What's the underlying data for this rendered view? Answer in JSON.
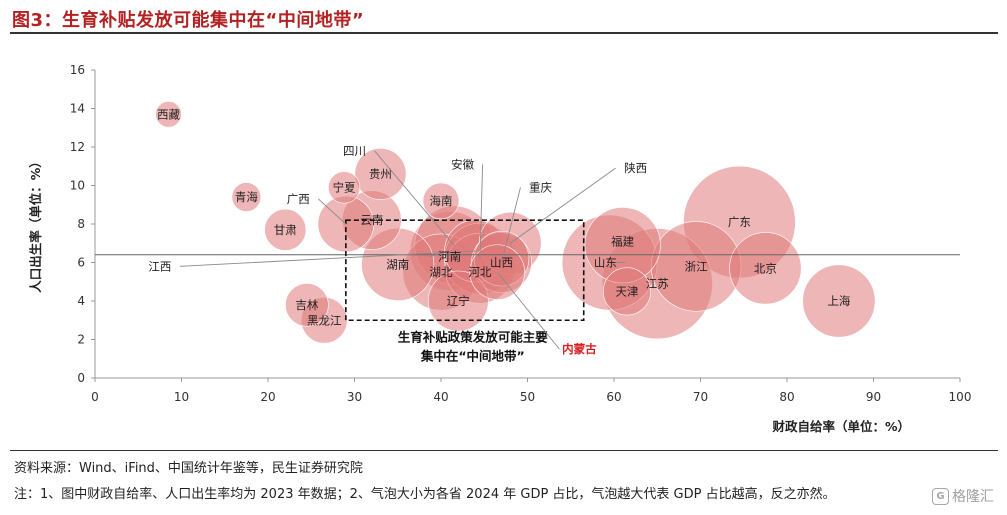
{
  "figure": {
    "title": "图3：生育补贴发放可能集中在“中间地带”",
    "source": "资料来源：Wind、iFind、中国统计年鉴等，民生证券研究院",
    "note": "注：1、图中财政自给率、人口出生率均为 2023 年数据；2、气泡大小为各省 2024 年 GDP 占比，气泡越大代表 GDP 占比越高，反之亦然。",
    "watermark": "格隆汇",
    "watermark_icon": "G"
  },
  "chart_data": {
    "type": "scatter",
    "subtype": "bubble",
    "xlabel": "财政自给率（单位：%）",
    "ylabel": "人口出生率（单位：%）",
    "xlim": [
      0,
      100
    ],
    "ylim": [
      0,
      16
    ],
    "xticks": [
      0,
      10,
      20,
      30,
      40,
      50,
      60,
      70,
      80,
      90,
      100
    ],
    "yticks": [
      0,
      2,
      4,
      6,
      8,
      10,
      12,
      14,
      16
    ],
    "grid": false,
    "bubble_color": "#e07a7a",
    "highlight_color": "#d42020",
    "reference_line_y": 6.4,
    "highlight_box": {
      "x": [
        29,
        56.5
      ],
      "y": [
        3,
        8.2
      ]
    },
    "box_label": [
      "生育补贴政策发放可能主要",
      "集中在“中间地带”"
    ],
    "points": [
      {
        "name": "西藏",
        "x": 8.5,
        "y": 13.7,
        "gdp_share": 0.2,
        "label_x": 8.5,
        "label_y": 13.7
      },
      {
        "name": "青海",
        "x": 17.5,
        "y": 9.4,
        "gdp_share": 0.3,
        "label_x": 17.5,
        "label_y": 9.4
      },
      {
        "name": "宁夏",
        "x": 28.8,
        "y": 9.9,
        "gdp_share": 0.4,
        "label_x": 28.8,
        "label_y": 9.9
      },
      {
        "name": "贵州",
        "x": 33.0,
        "y": 10.6,
        "gdp_share": 1.6,
        "label_x": 33.0,
        "label_y": 10.6
      },
      {
        "name": "海南",
        "x": 40.0,
        "y": 9.2,
        "gdp_share": 0.6,
        "label_x": 40.0,
        "label_y": 9.2
      },
      {
        "name": "甘肃",
        "x": 22.0,
        "y": 7.7,
        "gdp_share": 0.9,
        "label_x": 22.0,
        "label_y": 7.7
      },
      {
        "name": "广西",
        "x": 29.0,
        "y": 8.0,
        "gdp_share": 2.0,
        "label_x": 23.5,
        "label_y": 9.3
      },
      {
        "name": "云南",
        "x": 32.0,
        "y": 8.2,
        "gdp_share": 2.3,
        "label_x": 32.0,
        "label_y": 8.2
      },
      {
        "name": "江西",
        "x": 44.0,
        "y": 6.6,
        "gdp_share": 2.6,
        "label_x": 7.5,
        "label_y": 5.8
      },
      {
        "name": "湖南",
        "x": 35.0,
        "y": 5.9,
        "gdp_share": 3.8,
        "label_x": 35.0,
        "label_y": 5.9
      },
      {
        "name": "河南",
        "x": 41.0,
        "y": 6.6,
        "gdp_share": 4.7,
        "label_x": 41.0,
        "label_y": 6.3
      },
      {
        "name": "四川",
        "x": 41.5,
        "y": 6.9,
        "gdp_share": 4.6,
        "label_x": 30.0,
        "label_y": 11.8
      },
      {
        "name": "湖北",
        "x": 40.0,
        "y": 5.5,
        "gdp_share": 4.3,
        "label_x": 40.0,
        "label_y": 5.5
      },
      {
        "name": "安徽",
        "x": 44.5,
        "y": 6.2,
        "gdp_share": 3.6,
        "label_x": 42.5,
        "label_y": 11.1
      },
      {
        "name": "河北",
        "x": 44.5,
        "y": 5.7,
        "gdp_share": 3.5,
        "label_x": 44.5,
        "label_y": 5.5
      },
      {
        "name": "重庆",
        "x": 47.0,
        "y": 6.0,
        "gdp_share": 2.4,
        "label_x": 51.5,
        "label_y": 9.9
      },
      {
        "name": "山西",
        "x": 47.0,
        "y": 6.2,
        "gdp_share": 1.9,
        "label_x": 47.0,
        "label_y": 6.0
      },
      {
        "name": "陕西",
        "x": 48.0,
        "y": 7.0,
        "gdp_share": 2.6,
        "label_x": 62.5,
        "label_y": 10.9
      },
      {
        "name": "辽宁",
        "x": 42.0,
        "y": 4.0,
        "gdp_share": 2.4,
        "label_x": 42.0,
        "label_y": 4.0
      },
      {
        "name": "内蒙古",
        "x": 46.5,
        "y": 5.5,
        "gdp_share": 1.9,
        "label_x": 56.0,
        "label_y": 1.5,
        "highlight": true
      },
      {
        "name": "吉林",
        "x": 24.5,
        "y": 3.8,
        "gdp_share": 1.0,
        "label_x": 24.5,
        "label_y": 3.8
      },
      {
        "name": "黑龙江",
        "x": 26.5,
        "y": 3.0,
        "gdp_share": 1.2,
        "label_x": 26.5,
        "label_y": 3.0
      },
      {
        "name": "山东",
        "x": 59.5,
        "y": 6.0,
        "gdp_share": 7.2,
        "label_x": 59.0,
        "label_y": 6.0
      },
      {
        "name": "福建",
        "x": 61.0,
        "y": 6.9,
        "gdp_share": 4.2,
        "label_x": 61.0,
        "label_y": 7.1
      },
      {
        "name": "天津",
        "x": 61.5,
        "y": 4.5,
        "gdp_share": 1.3,
        "label_x": 61.5,
        "label_y": 4.5
      },
      {
        "name": "江苏",
        "x": 65.0,
        "y": 4.9,
        "gdp_share": 10.1,
        "label_x": 65.0,
        "label_y": 4.9
      },
      {
        "name": "浙江",
        "x": 69.5,
        "y": 5.8,
        "gdp_share": 6.3,
        "label_x": 69.5,
        "label_y": 5.8
      },
      {
        "name": "广东",
        "x": 74.5,
        "y": 8.1,
        "gdp_share": 10.4,
        "label_x": 74.5,
        "label_y": 8.1
      },
      {
        "name": "北京",
        "x": 77.5,
        "y": 5.7,
        "gdp_share": 3.7,
        "label_x": 77.5,
        "label_y": 5.7
      },
      {
        "name": "上海",
        "x": 86.0,
        "y": 4.0,
        "gdp_share": 3.8,
        "label_x": 86.0,
        "label_y": 4.0
      }
    ]
  }
}
